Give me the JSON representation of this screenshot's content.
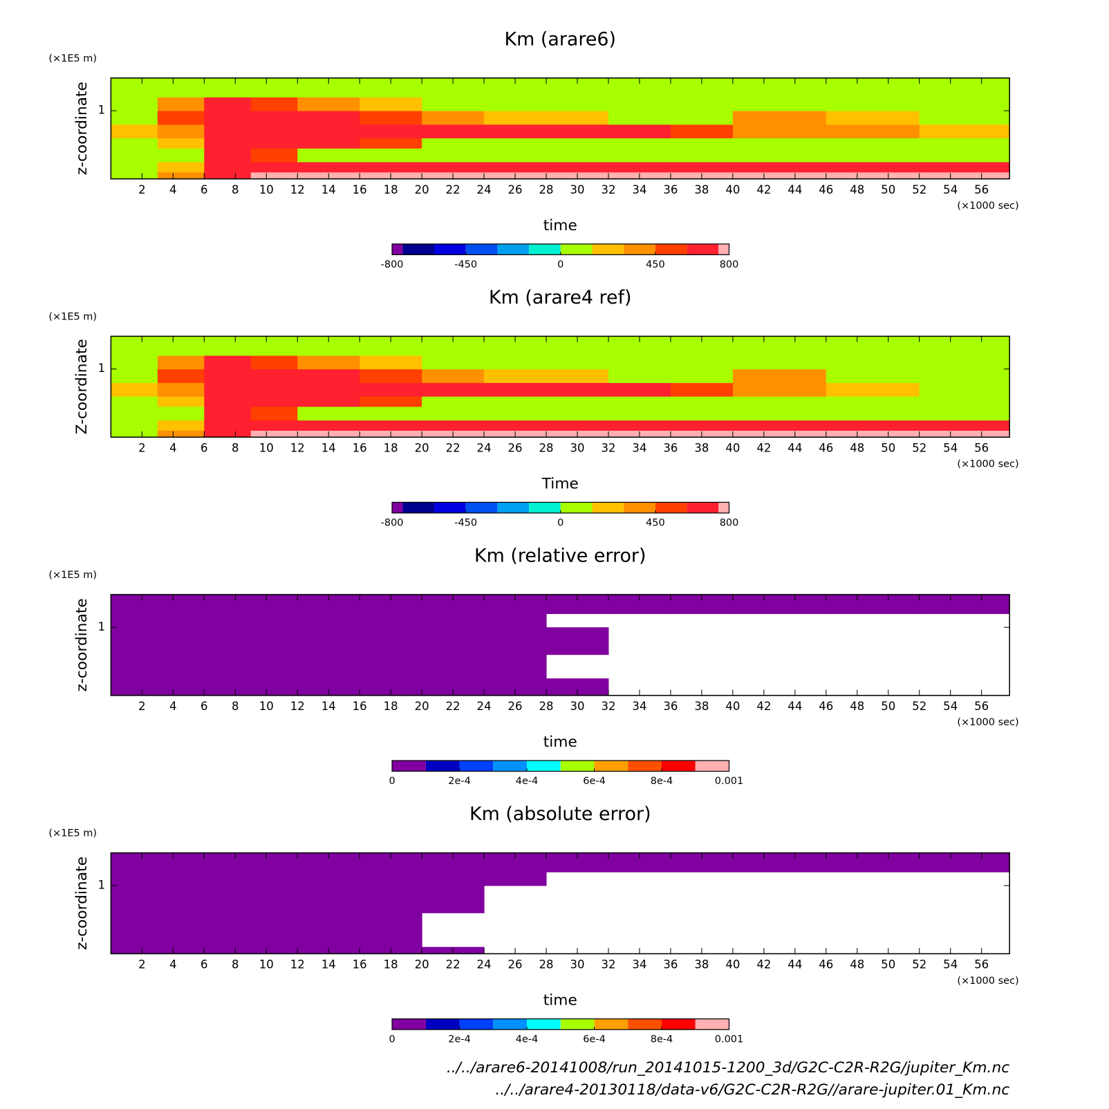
{
  "chart_data": [
    {
      "type": "heatmap",
      "title": "Km (arare6)",
      "y_unit": "(×1E5 m)",
      "ylabel": "z-coordinate",
      "xlabel": "time",
      "x_unit": "(×1000 sec)",
      "x": [
        0,
        3,
        6,
        9,
        12,
        16,
        20,
        24,
        28,
        32,
        36,
        40,
        46,
        52,
        57.8
      ],
      "y": [
        0,
        0.1,
        0.25,
        0.45,
        0.6,
        0.8,
        1.0,
        1.2,
        1.48
      ],
      "z": [
        [
          50,
          350,
          650,
          850,
          850,
          850,
          850,
          850,
          850,
          850,
          850,
          850,
          850,
          850
        ],
        [
          50,
          200,
          650,
          650,
          650,
          650,
          650,
          650,
          650,
          650,
          650,
          650,
          650,
          650
        ],
        [
          50,
          50,
          650,
          500,
          50,
          50,
          50,
          50,
          50,
          50,
          50,
          50,
          50,
          50
        ],
        [
          50,
          200,
          650,
          650,
          650,
          500,
          50,
          50,
          50,
          50,
          50,
          50,
          50,
          50
        ],
        [
          200,
          350,
          650,
          650,
          650,
          650,
          650,
          650,
          650,
          650,
          500,
          350,
          350,
          200
        ],
        [
          50,
          500,
          650,
          650,
          650,
          500,
          350,
          200,
          200,
          50,
          50,
          350,
          200,
          50
        ],
        [
          50,
          350,
          650,
          500,
          350,
          200,
          50,
          50,
          50,
          50,
          50,
          50,
          50,
          50
        ],
        [
          50,
          50,
          50,
          50,
          50,
          50,
          50,
          50,
          50,
          50,
          50,
          50,
          50,
          50
        ]
      ],
      "xlim": [
        0,
        57.8
      ],
      "ylim": [
        0,
        1.48
      ],
      "xticks": [
        2,
        4,
        6,
        8,
        10,
        12,
        14,
        16,
        18,
        20,
        22,
        24,
        26,
        28,
        30,
        32,
        34,
        36,
        38,
        40,
        42,
        44,
        46,
        48,
        50,
        52,
        54,
        56
      ],
      "yticks": [
        1
      ],
      "clim": [
        -800,
        800
      ],
      "levels": [
        -750,
        -600,
        -450,
        -300,
        -150,
        0,
        150,
        300,
        450,
        600,
        750
      ],
      "colors": [
        "#8000a0",
        "#000090",
        "#0000e0",
        "#0050f0",
        "#00a0f0",
        "#00f0d0",
        "#a8ff00",
        "#ffc000",
        "#ff9000",
        "#ff4000",
        "#ff2030",
        "#ffb0b0"
      ],
      "cticks": [
        -800,
        -450,
        0,
        450,
        800
      ]
    },
    {
      "type": "heatmap",
      "title": "Km (arare4 ref)",
      "y_unit": "(×1E5 m)",
      "ylabel": "Z-coordinate",
      "xlabel": "Time",
      "x_unit": "(×1000 sec)",
      "x": [
        0,
        3,
        6,
        9,
        12,
        16,
        20,
        24,
        28,
        32,
        36,
        40,
        46,
        52,
        57.8
      ],
      "y": [
        0,
        0.1,
        0.25,
        0.45,
        0.6,
        0.8,
        1.0,
        1.2,
        1.48
      ],
      "z": [
        [
          50,
          350,
          650,
          850,
          850,
          850,
          850,
          850,
          850,
          850,
          850,
          850,
          850,
          850
        ],
        [
          50,
          200,
          650,
          650,
          650,
          650,
          650,
          650,
          650,
          650,
          650,
          650,
          650,
          650
        ],
        [
          50,
          50,
          650,
          500,
          50,
          50,
          50,
          50,
          50,
          50,
          50,
          50,
          50,
          50
        ],
        [
          50,
          200,
          650,
          650,
          650,
          500,
          50,
          50,
          50,
          50,
          50,
          50,
          50,
          50
        ],
        [
          200,
          350,
          650,
          650,
          650,
          650,
          650,
          650,
          650,
          650,
          500,
          350,
          200,
          50
        ],
        [
          50,
          500,
          650,
          650,
          650,
          500,
          350,
          200,
          200,
          50,
          50,
          350,
          50,
          50
        ],
        [
          50,
          350,
          650,
          500,
          350,
          200,
          50,
          50,
          50,
          50,
          50,
          50,
          50,
          50
        ],
        [
          50,
          50,
          50,
          50,
          50,
          50,
          50,
          50,
          50,
          50,
          50,
          50,
          50,
          50
        ]
      ],
      "xlim": [
        0,
        57.8
      ],
      "ylim": [
        0,
        1.48
      ],
      "xticks": [
        2,
        4,
        6,
        8,
        10,
        12,
        14,
        16,
        18,
        20,
        22,
        24,
        26,
        28,
        30,
        32,
        34,
        36,
        38,
        40,
        42,
        44,
        46,
        48,
        50,
        52,
        54,
        56
      ],
      "yticks": [
        1
      ],
      "clim": [
        -800,
        800
      ],
      "levels": [
        -750,
        -600,
        -450,
        -300,
        -150,
        0,
        150,
        300,
        450,
        600,
        750
      ],
      "colors": [
        "#8000a0",
        "#000090",
        "#0000e0",
        "#0050f0",
        "#00a0f0",
        "#00f0d0",
        "#a8ff00",
        "#ffc000",
        "#ff9000",
        "#ff4000",
        "#ff2030",
        "#ffb0b0"
      ],
      "cticks": [
        -800,
        -450,
        0,
        450,
        800
      ]
    },
    {
      "type": "heatmap",
      "title": "Km (relative error)",
      "y_unit": "(×1E5 m)",
      "ylabel": "z-coordinate",
      "xlabel": "time",
      "x_unit": "(×1000 sec)",
      "x": [
        0,
        3,
        6,
        9,
        12,
        16,
        20,
        24,
        28,
        32,
        36,
        40,
        46,
        52,
        57.8
      ],
      "y": [
        0,
        0.1,
        0.25,
        0.45,
        0.6,
        0.8,
        1.0,
        1.2,
        1.48
      ],
      "z": [
        [
          5e-05,
          5e-05,
          5e-05,
          5e-05,
          5e-05,
          5e-05,
          5e-05,
          5e-05,
          5e-05,
          null,
          null,
          null,
          null,
          null
        ],
        [
          5e-05,
          5e-05,
          5e-05,
          5e-05,
          5e-05,
          5e-05,
          5e-05,
          5e-05,
          5e-05,
          null,
          null,
          null,
          null,
          null
        ],
        [
          5e-05,
          5e-05,
          5e-05,
          5e-05,
          5e-05,
          5e-05,
          5e-05,
          5e-05,
          null,
          null,
          null,
          null,
          null,
          null
        ],
        [
          5e-05,
          5e-05,
          5e-05,
          5e-05,
          5e-05,
          5e-05,
          5e-05,
          5e-05,
          null,
          null,
          null,
          null,
          null,
          null
        ],
        [
          5e-05,
          5e-05,
          5e-05,
          5e-05,
          5e-05,
          5e-05,
          5e-05,
          5e-05,
          5e-05,
          null,
          null,
          null,
          null,
          null
        ],
        [
          5e-05,
          5e-05,
          5e-05,
          5e-05,
          5e-05,
          5e-05,
          5e-05,
          5e-05,
          5e-05,
          null,
          null,
          null,
          null,
          null
        ],
        [
          5e-05,
          5e-05,
          5e-05,
          5e-05,
          5e-05,
          5e-05,
          5e-05,
          5e-05,
          null,
          null,
          null,
          null,
          null,
          null
        ],
        [
          5e-05,
          5e-05,
          5e-05,
          5e-05,
          5e-05,
          5e-05,
          5e-05,
          5e-05,
          5e-05,
          5e-05,
          5e-05,
          5e-05,
          5e-05,
          5e-05
        ]
      ],
      "xlim": [
        0,
        57.8
      ],
      "ylim": [
        0,
        1.48
      ],
      "xticks": [
        2,
        4,
        6,
        8,
        10,
        12,
        14,
        16,
        18,
        20,
        22,
        24,
        26,
        28,
        30,
        32,
        34,
        36,
        38,
        40,
        42,
        44,
        46,
        48,
        50,
        52,
        54,
        56
      ],
      "yticks": [
        1
      ],
      "clim": [
        0,
        0.001
      ],
      "levels": [
        0.0001,
        0.0002,
        0.0003,
        0.0004,
        0.0005,
        0.0006,
        0.0007,
        0.0008,
        0.0009
      ],
      "colors": [
        "#8000a0",
        "#0000c0",
        "#0040ff",
        "#0090ff",
        "#00ffff",
        "#a8ff00",
        "#ffa000",
        "#ff5000",
        "#ff0000",
        "#ffb0b0"
      ],
      "cticks": [
        0,
        {
          "value": 0.0002,
          "label": "2e-4"
        },
        {
          "value": 0.0004,
          "label": "4e-4"
        },
        {
          "value": 0.0006,
          "label": "6e-4"
        },
        {
          "value": 0.0008,
          "label": "8e-4"
        },
        0.001
      ]
    },
    {
      "type": "heatmap",
      "title": "Km (absolute error)",
      "y_unit": "(×1E5 m)",
      "ylabel": "z-coordinate",
      "xlabel": "time",
      "x_unit": "(×1000 sec)",
      "x": [
        0,
        3,
        6,
        9,
        12,
        16,
        20,
        24,
        28,
        32,
        36,
        40,
        46,
        52,
        57.8
      ],
      "y": [
        0,
        0.1,
        0.25,
        0.45,
        0.6,
        0.8,
        1.0,
        1.2,
        1.48
      ],
      "z": [
        [
          5e-05,
          5e-05,
          5e-05,
          5e-05,
          5e-05,
          5e-05,
          5e-05,
          null,
          null,
          null,
          null,
          null,
          null,
          null
        ],
        [
          5e-05,
          5e-05,
          5e-05,
          5e-05,
          5e-05,
          5e-05,
          null,
          null,
          null,
          null,
          null,
          null,
          null,
          null
        ],
        [
          5e-05,
          5e-05,
          5e-05,
          5e-05,
          5e-05,
          5e-05,
          null,
          null,
          null,
          null,
          null,
          null,
          null,
          null
        ],
        [
          5e-05,
          5e-05,
          5e-05,
          5e-05,
          5e-05,
          5e-05,
          null,
          null,
          null,
          null,
          null,
          null,
          null,
          null
        ],
        [
          5e-05,
          5e-05,
          5e-05,
          5e-05,
          5e-05,
          5e-05,
          5e-05,
          null,
          null,
          null,
          null,
          null,
          null,
          null
        ],
        [
          5e-05,
          5e-05,
          5e-05,
          5e-05,
          5e-05,
          5e-05,
          5e-05,
          null,
          null,
          null,
          null,
          null,
          null,
          null
        ],
        [
          5e-05,
          5e-05,
          5e-05,
          5e-05,
          5e-05,
          5e-05,
          5e-05,
          5e-05,
          null,
          null,
          null,
          null,
          null,
          null
        ],
        [
          5e-05,
          5e-05,
          5e-05,
          5e-05,
          5e-05,
          5e-05,
          5e-05,
          5e-05,
          5e-05,
          5e-05,
          5e-05,
          5e-05,
          5e-05,
          5e-05
        ]
      ],
      "xlim": [
        0,
        57.8
      ],
      "ylim": [
        0,
        1.48
      ],
      "xticks": [
        2,
        4,
        6,
        8,
        10,
        12,
        14,
        16,
        18,
        20,
        22,
        24,
        26,
        28,
        30,
        32,
        34,
        36,
        38,
        40,
        42,
        44,
        46,
        48,
        50,
        52,
        54,
        56
      ],
      "yticks": [
        1
      ],
      "clim": [
        0,
        0.001
      ],
      "levels": [
        0.0001,
        0.0002,
        0.0003,
        0.0004,
        0.0005,
        0.0006,
        0.0007,
        0.0008,
        0.0009
      ],
      "colors": [
        "#8000a0",
        "#0000c0",
        "#0040ff",
        "#0090ff",
        "#00ffff",
        "#a8ff00",
        "#ffa000",
        "#ff5000",
        "#ff0000",
        "#ffb0b0"
      ],
      "cticks": [
        0,
        {
          "value": 0.0002,
          "label": "2e-4"
        },
        {
          "value": 0.0004,
          "label": "4e-4"
        },
        {
          "value": 0.0006,
          "label": "6e-4"
        },
        {
          "value": 0.0008,
          "label": "8e-4"
        },
        0.001
      ]
    }
  ],
  "footer": [
    "../../arare6-20141008/run_20141015-1200_3d/G2C-C2R-R2G/jupiter_Km.nc",
    "../../arare4-20130118/data-v6/G2C-C2R-R2G//arare-jupiter.01_Km.nc"
  ]
}
